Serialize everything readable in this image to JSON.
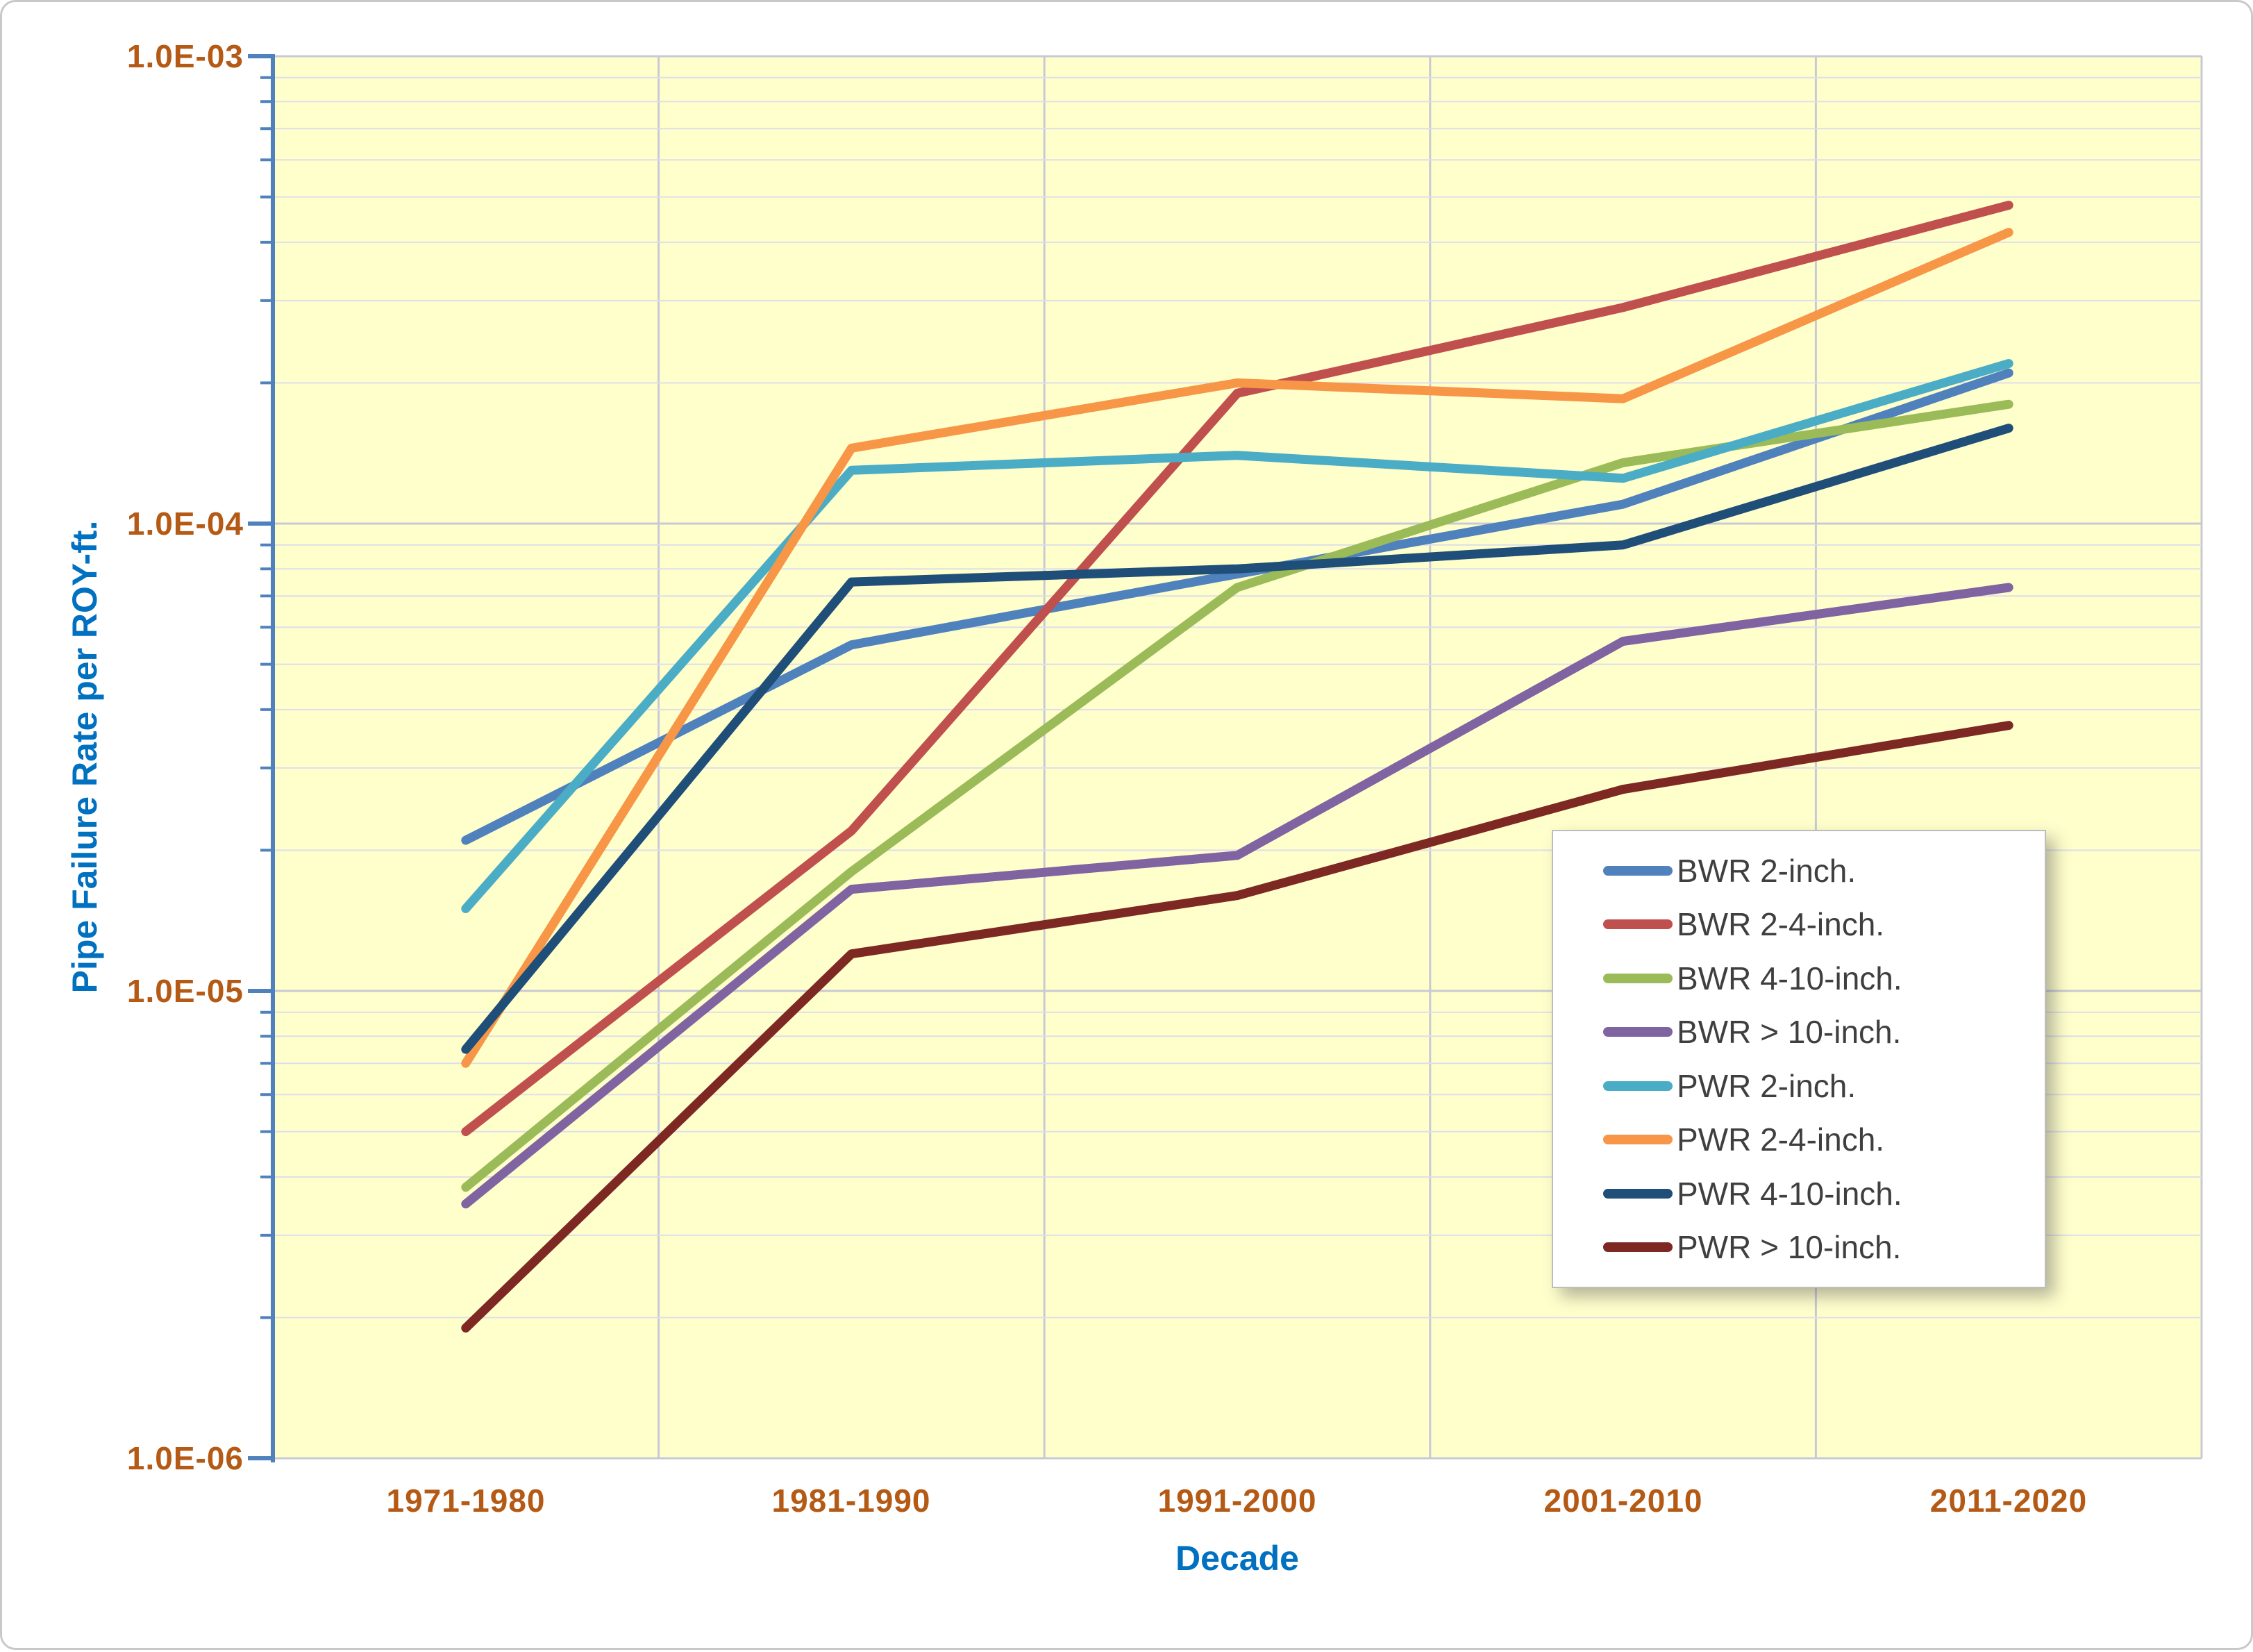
{
  "chart_data": {
    "type": "line",
    "title": "",
    "xlabel": "Decade",
    "ylabel": "Pipe Failure Rate per ROY-ft.",
    "y_scale": "log",
    "ylim": [
      1e-06,
      0.001
    ],
    "ytick_labels": [
      "1.0E-03",
      "1.0E-04",
      "1.0E-05",
      "1.0E-06"
    ],
    "categories": [
      "1971-1980",
      "1981-1990",
      "1991-2000",
      "2001-2010",
      "2011-2020"
    ],
    "series": [
      {
        "name": "BWR 2-inch.",
        "color": "#4F81BD",
        "values": [
          2.1e-05,
          5.5e-05,
          7.8e-05,
          0.00011,
          0.00021
        ]
      },
      {
        "name": "BWR 2-4-inch.",
        "color": "#C0504D",
        "values": [
          5e-06,
          2.2e-05,
          0.00019,
          0.00029,
          0.00048
        ]
      },
      {
        "name": "BWR 4-10-inch.",
        "color": "#9BBB59",
        "values": [
          3.8e-06,
          1.8e-05,
          7.3e-05,
          0.000135,
          0.00018
        ]
      },
      {
        "name": "BWR > 10-inch.",
        "color": "#8064A2",
        "values": [
          3.5e-06,
          1.65e-05,
          1.95e-05,
          5.6e-05,
          7.3e-05
        ]
      },
      {
        "name": "PWR 2-inch.",
        "color": "#4BACC6",
        "values": [
          1.5e-05,
          0.00013,
          0.00014,
          0.000125,
          0.00022
        ]
      },
      {
        "name": "PWR 2-4-inch.",
        "color": "#F79646",
        "values": [
          7e-06,
          0.000145,
          0.0002,
          0.000185,
          0.00042
        ]
      },
      {
        "name": "PWR 4-10-inch.",
        "color": "#1F4E79",
        "values": [
          7.5e-06,
          7.5e-05,
          8e-05,
          9e-05,
          0.00016
        ]
      },
      {
        "name": "PWR > 10-inch.",
        "color": "#7D2823",
        "values": [
          1.9e-06,
          1.2e-05,
          1.6e-05,
          2.7e-05,
          3.7e-05
        ]
      }
    ],
    "legend_position": "inside-right",
    "grid": true,
    "plot_bg_color": "#FFFFCC",
    "minor_grid_color": "#DEDEE9",
    "major_grid_color": "#C9C9D6",
    "axis_line_color": "#4F81BD",
    "tick_label_color": "#B45A15",
    "axis_title_color": "#0070C0",
    "legend_text_color": "#3F3F3F"
  }
}
